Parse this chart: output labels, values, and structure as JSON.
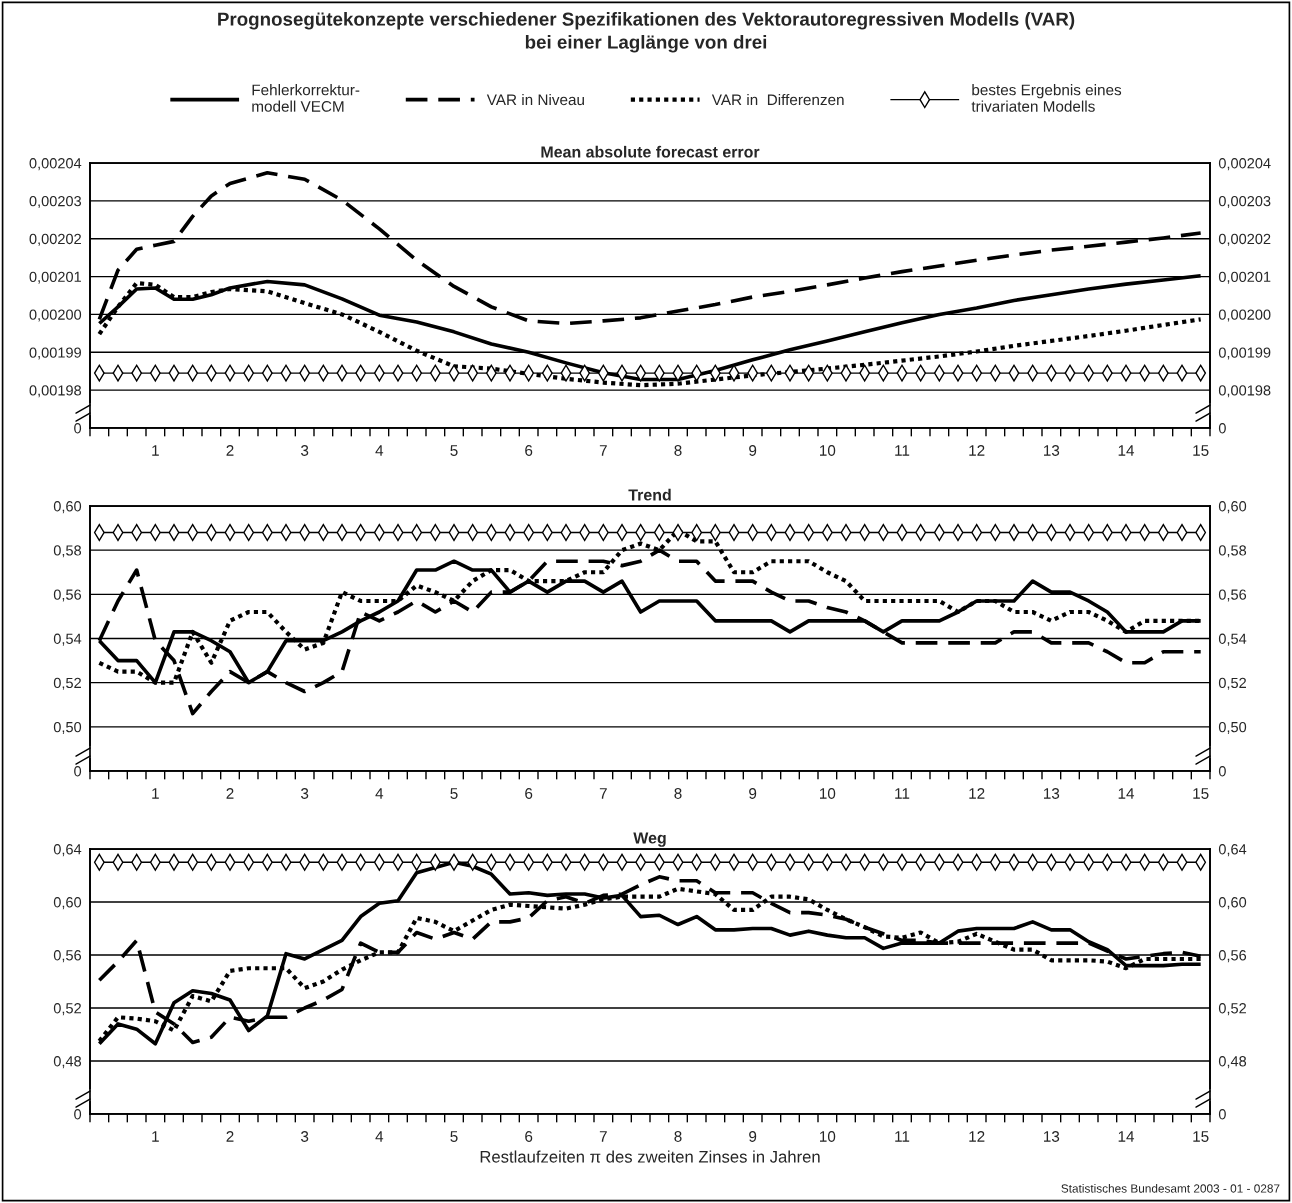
{
  "chart_data": [
    {
      "type": "line",
      "title": "Prognosegütekonzepte verschiedener Spezifikationen des Vektorautoregressiven Modells (VAR)\nbei einer Laglänge von drei",
      "subtitle": "Mean absolute forecast error",
      "x": [
        0.25,
        0.5,
        0.75,
        1,
        1.25,
        1.5,
        1.75,
        2,
        2.25,
        2.5,
        2.75,
        3,
        3.25,
        3.5,
        3.75,
        4,
        4.25,
        4.5,
        4.75,
        5,
        5.25,
        5.5,
        5.75,
        6,
        6.25,
        6.5,
        6.75,
        7,
        7.25,
        7.5,
        7.75,
        8,
        8.25,
        8.5,
        8.75,
        9,
        9.25,
        9.5,
        9.75,
        10,
        10.25,
        10.5,
        10.75,
        11,
        11.25,
        11.5,
        11.75,
        12,
        12.25,
        12.5,
        12.75,
        13,
        13.25,
        13.5,
        13.75,
        14,
        14.25,
        14.5,
        14.75,
        15
      ],
      "xlim": [
        0.125,
        15.125
      ],
      "xticks": [
        {
          "value": 0.125,
          "label": null
        },
        {
          "value": 0.375,
          "label": null
        },
        {
          "value": 0.625,
          "label": null
        },
        {
          "value": 0.875,
          "label": null
        },
        {
          "value": 1,
          "label": "1"
        },
        {
          "value": 1.125,
          "label": null
        },
        {
          "value": 1.375,
          "label": null
        },
        {
          "value": 1.625,
          "label": null
        },
        {
          "value": 1.875,
          "label": null
        },
        {
          "value": 2,
          "label": "2"
        },
        {
          "value": 2.125,
          "label": null
        },
        {
          "value": 2.375,
          "label": null
        },
        {
          "value": 2.625,
          "label": null
        },
        {
          "value": 2.875,
          "label": null
        },
        {
          "value": 3,
          "label": "3"
        },
        {
          "value": 3.125,
          "label": null
        },
        {
          "value": 3.375,
          "label": null
        },
        {
          "value": 3.625,
          "label": null
        },
        {
          "value": 3.875,
          "label": null
        },
        {
          "value": 4,
          "label": "4"
        },
        {
          "value": 4.125,
          "label": null
        },
        {
          "value": 4.375,
          "label": null
        },
        {
          "value": 4.625,
          "label": null
        },
        {
          "value": 4.875,
          "label": null
        },
        {
          "value": 5,
          "label": "5"
        },
        {
          "value": 5.125,
          "label": null
        },
        {
          "value": 5.375,
          "label": null
        },
        {
          "value": 5.625,
          "label": null
        },
        {
          "value": 5.875,
          "label": null
        },
        {
          "value": 6,
          "label": "6"
        },
        {
          "value": 6.125,
          "label": null
        },
        {
          "value": 6.375,
          "label": null
        },
        {
          "value": 6.625,
          "label": null
        },
        {
          "value": 6.875,
          "label": null
        },
        {
          "value": 7,
          "label": "7"
        },
        {
          "value": 7.125,
          "label": null
        },
        {
          "value": 7.375,
          "label": null
        },
        {
          "value": 7.625,
          "label": null
        },
        {
          "value": 7.875,
          "label": null
        },
        {
          "value": 8,
          "label": "8"
        },
        {
          "value": 8.125,
          "label": null
        },
        {
          "value": 8.375,
          "label": null
        },
        {
          "value": 8.625,
          "label": null
        },
        {
          "value": 8.875,
          "label": null
        },
        {
          "value": 9,
          "label": "9"
        },
        {
          "value": 9.125,
          "label": null
        },
        {
          "value": 9.375,
          "label": null
        },
        {
          "value": 9.625,
          "label": null
        },
        {
          "value": 9.875,
          "label": null
        },
        {
          "value": 10,
          "label": "10"
        },
        {
          "value": 10.125,
          "label": null
        },
        {
          "value": 10.375,
          "label": null
        },
        {
          "value": 10.625,
          "label": null
        },
        {
          "value": 10.875,
          "label": null
        },
        {
          "value": 11,
          "label": "11"
        },
        {
          "value": 11.125,
          "label": null
        },
        {
          "value": 11.375,
          "label": null
        },
        {
          "value": 11.625,
          "label": null
        },
        {
          "value": 11.875,
          "label": null
        },
        {
          "value": 12,
          "label": "12"
        },
        {
          "value": 12.125,
          "label": null
        },
        {
          "value": 12.375,
          "label": null
        },
        {
          "value": 12.625,
          "label": null
        },
        {
          "value": 12.875,
          "label": null
        },
        {
          "value": 13,
          "label": "13"
        },
        {
          "value": 13.125,
          "label": null
        },
        {
          "value": 13.375,
          "label": null
        },
        {
          "value": 13.625,
          "label": null
        },
        {
          "value": 13.875,
          "label": null
        },
        {
          "value": 14,
          "label": "14"
        },
        {
          "value": 14.125,
          "label": null
        },
        {
          "value": 14.375,
          "label": null
        },
        {
          "value": 14.625,
          "label": null
        },
        {
          "value": 14.875,
          "label": null
        },
        {
          "value": 15,
          "label": "15"
        },
        {
          "value": 15.125,
          "label": null
        }
      ],
      "ylim": [
        0.00197,
        0.00204
      ],
      "yticks": [
        {
          "value": 0.00197,
          "label": "0"
        },
        {
          "value": 0.00198,
          "label": "0,00198"
        },
        {
          "value": 0.00199,
          "label": "0,00199"
        },
        {
          "value": 0.002,
          "label": "0,00200"
        },
        {
          "value": 0.00201,
          "label": "0,00201"
        },
        {
          "value": 0.00202,
          "label": "0,00202"
        },
        {
          "value": 0.00203,
          "label": "0,00203"
        },
        {
          "value": 0.00204,
          "label": "0,00204"
        }
      ],
      "y2lim": [
        0.00197,
        0.00204
      ],
      "y2ticks": [
        {
          "value": 0.00197,
          "label": "0"
        },
        {
          "value": 0.00198,
          "label": "0,00198"
        },
        {
          "value": 0.00199,
          "label": "0,00199"
        },
        {
          "value": 0.002,
          "label": "0,00200"
        },
        {
          "value": 0.00201,
          "label": "0,00201"
        },
        {
          "value": 0.00202,
          "label": "0,00202"
        },
        {
          "value": 0.00203,
          "label": "0,00203"
        },
        {
          "value": 0.00204,
          "label": "0,00204"
        }
      ],
      "grid": "y",
      "legend": "top",
      "series": [
        {
          "name": "Fehlerkorrektur-\nmodell VECM",
          "color": "#000000",
          "line_style": "solid",
          "x": [
            0.25,
            0.5,
            0.75,
            1,
            1.25,
            1.5,
            1.75,
            2,
            2.5,
            3,
            3.5,
            4,
            4.5,
            5,
            5.5,
            6,
            6.5,
            7,
            7.5,
            8,
            8.5,
            9,
            9.5,
            10,
            10.5,
            11,
            11.5,
            12,
            12.5,
            13,
            13.5,
            14,
            14.5,
            15
          ],
          "values": [
            0.0019976,
            0.002002,
            0.0020067,
            0.002007,
            0.002004,
            0.002004,
            0.0020052,
            0.002007,
            0.0020087,
            0.0020078,
            0.0020041,
            0.0019998,
            0.001998,
            0.0019954,
            0.0019922,
            0.00199,
            0.0019872,
            0.0019846,
            0.0019828,
            0.0019828,
            0.0019852,
            0.001988,
            0.0019907,
            0.001993,
            0.0019954,
            0.0019978,
            0.002,
            0.0020017,
            0.0020037,
            0.0020052,
            0.0020067,
            0.002008,
            0.0020091,
            0.0020102
          ]
        },
        {
          "name": "VAR in Niveau",
          "color": "#000000",
          "line_style": "dashed",
          "x": [
            0.25,
            0.5,
            0.75,
            1,
            1.25,
            1.5,
            1.75,
            2,
            2.5,
            3,
            3.5,
            4,
            4.5,
            5,
            5.5,
            6,
            6.5,
            7,
            7.5,
            8,
            8.5,
            9,
            9.5,
            10,
            10.5,
            11,
            11.5,
            12,
            12.5,
            13,
            13.5,
            14,
            14.5,
            15
          ],
          "values": [
            0.0019987,
            0.0020117,
            0.0020172,
            0.0020183,
            0.0020193,
            0.0020259,
            0.0020313,
            0.0020346,
            0.0020374,
            0.0020357,
            0.0020302,
            0.0020226,
            0.0020143,
            0.0020074,
            0.002002,
            0.0019983,
            0.0019976,
            0.0019983,
            0.0019991,
            0.0020009,
            0.0020026,
            0.0020046,
            0.0020061,
            0.0020078,
            0.0020096,
            0.0020113,
            0.0020128,
            0.0020143,
            0.0020157,
            0.002017,
            0.002018,
            0.0020191,
            0.0020202,
            0.0020215
          ]
        },
        {
          "name": "VAR in  Differenzen",
          "color": "#000000",
          "line_style": "dotted",
          "x": [
            0.25,
            0.5,
            0.75,
            1,
            1.25,
            1.5,
            1.75,
            2,
            2.5,
            3,
            3.5,
            4,
            4.5,
            5,
            5.5,
            6,
            6.5,
            7,
            7.5,
            8,
            8.5,
            9,
            9.5,
            10,
            10.5,
            11,
            11.5,
            12,
            12.5,
            13,
            13.5,
            14,
            14.5,
            15
          ],
          "values": [
            0.0019948,
            0.002002,
            0.0020083,
            0.0020078,
            0.0020046,
            0.0020046,
            0.0020059,
            0.0020067,
            0.0020061,
            0.002003,
            0.002,
            0.0019954,
            0.0019904,
            0.0019863,
            0.0019857,
            0.0019843,
            0.001983,
            0.001982,
            0.0019813,
            0.0019817,
            0.0019828,
            0.0019839,
            0.0019848,
            0.0019857,
            0.0019867,
            0.0019878,
            0.0019889,
            0.0019902,
            0.0019917,
            0.001993,
            0.0019943,
            0.0019957,
            0.0019972,
            0.0019987
          ]
        },
        {
          "name": "bestes Ergebnis eines\ntrivariaten Modells",
          "color": "#000000",
          "line_style": "solid",
          "marker": "diamond",
          "values": [
            0.0019845,
            0.0019845,
            0.0019845,
            0.0019845,
            0.0019845,
            0.0019845,
            0.0019845,
            0.0019845,
            0.0019845,
            0.0019845,
            0.0019845,
            0.0019845,
            0.0019845,
            0.0019845,
            0.0019845,
            0.0019845,
            0.0019845,
            0.0019845,
            0.0019845,
            0.0019845,
            0.0019845,
            0.0019845,
            0.0019845,
            0.0019845,
            0.0019845,
            0.0019845,
            0.0019845,
            0.0019845,
            0.0019845,
            0.0019845,
            0.0019845,
            0.0019845,
            0.0019845,
            0.0019845,
            0.0019845,
            0.0019845,
            0.0019845,
            0.0019845,
            0.0019845,
            0.0019845,
            0.0019845,
            0.0019845,
            0.0019845,
            0.0019845,
            0.0019845,
            0.0019845,
            0.0019845,
            0.0019845,
            0.0019845,
            0.0019845,
            0.0019845,
            0.0019845,
            0.0019845,
            0.0019845,
            0.0019845,
            0.0019845,
            0.0019845,
            0.0019845,
            0.0019845,
            0.0019845
          ]
        }
      ]
    },
    {
      "type": "line",
      "title": "Trend",
      "x": [
        0.25,
        0.5,
        0.75,
        1,
        1.25,
        1.5,
        1.75,
        2,
        2.25,
        2.5,
        2.75,
        3,
        3.25,
        3.5,
        3.75,
        4,
        4.25,
        4.5,
        4.75,
        5,
        5.25,
        5.5,
        5.75,
        6,
        6.25,
        6.5,
        6.75,
        7,
        7.25,
        7.5,
        7.75,
        8,
        8.25,
        8.5,
        8.75,
        9,
        9.25,
        9.5,
        9.75,
        10,
        10.25,
        10.5,
        10.75,
        11,
        11.25,
        11.5,
        11.75,
        12,
        12.25,
        12.5,
        12.75,
        13,
        13.25,
        13.5,
        13.75,
        14,
        14.25,
        14.5,
        14.75,
        15
      ],
      "xlim": [
        0.125,
        15.125
      ],
      "xticks": [
        {
          "value": 0.125,
          "label": null
        },
        {
          "value": 0.375,
          "label": null
        },
        {
          "value": 0.625,
          "label": null
        },
        {
          "value": 0.875,
          "label": null
        },
        {
          "value": 1,
          "label": "1"
        },
        {
          "value": 1.125,
          "label": null
        },
        {
          "value": 1.375,
          "label": null
        },
        {
          "value": 1.625,
          "label": null
        },
        {
          "value": 1.875,
          "label": null
        },
        {
          "value": 2,
          "label": "2"
        },
        {
          "value": 2.125,
          "label": null
        },
        {
          "value": 2.375,
          "label": null
        },
        {
          "value": 2.625,
          "label": null
        },
        {
          "value": 2.875,
          "label": null
        },
        {
          "value": 3,
          "label": "3"
        },
        {
          "value": 3.125,
          "label": null
        },
        {
          "value": 3.375,
          "label": null
        },
        {
          "value": 3.625,
          "label": null
        },
        {
          "value": 3.875,
          "label": null
        },
        {
          "value": 4,
          "label": "4"
        },
        {
          "value": 4.125,
          "label": null
        },
        {
          "value": 4.375,
          "label": null
        },
        {
          "value": 4.625,
          "label": null
        },
        {
          "value": 4.875,
          "label": null
        },
        {
          "value": 5,
          "label": "5"
        },
        {
          "value": 5.125,
          "label": null
        },
        {
          "value": 5.375,
          "label": null
        },
        {
          "value": 5.625,
          "label": null
        },
        {
          "value": 5.875,
          "label": null
        },
        {
          "value": 6,
          "label": "6"
        },
        {
          "value": 6.125,
          "label": null
        },
        {
          "value": 6.375,
          "label": null
        },
        {
          "value": 6.625,
          "label": null
        },
        {
          "value": 6.875,
          "label": null
        },
        {
          "value": 7,
          "label": "7"
        },
        {
          "value": 7.125,
          "label": null
        },
        {
          "value": 7.375,
          "label": null
        },
        {
          "value": 7.625,
          "label": null
        },
        {
          "value": 7.875,
          "label": null
        },
        {
          "value": 8,
          "label": "8"
        },
        {
          "value": 8.125,
          "label": null
        },
        {
          "value": 8.375,
          "label": null
        },
        {
          "value": 8.625,
          "label": null
        },
        {
          "value": 8.875,
          "label": null
        },
        {
          "value": 9,
          "label": "9"
        },
        {
          "value": 9.125,
          "label": null
        },
        {
          "value": 9.375,
          "label": null
        },
        {
          "value": 9.625,
          "label": null
        },
        {
          "value": 9.875,
          "label": null
        },
        {
          "value": 10,
          "label": "10"
        },
        {
          "value": 10.125,
          "label": null
        },
        {
          "value": 10.375,
          "label": null
        },
        {
          "value": 10.625,
          "label": null
        },
        {
          "value": 10.875,
          "label": null
        },
        {
          "value": 11,
          "label": "11"
        },
        {
          "value": 11.125,
          "label": null
        },
        {
          "value": 11.375,
          "label": null
        },
        {
          "value": 11.625,
          "label": null
        },
        {
          "value": 11.875,
          "label": null
        },
        {
          "value": 12,
          "label": "12"
        },
        {
          "value": 12.125,
          "label": null
        },
        {
          "value": 12.375,
          "label": null
        },
        {
          "value": 12.625,
          "label": null
        },
        {
          "value": 12.875,
          "label": null
        },
        {
          "value": 13,
          "label": "13"
        },
        {
          "value": 13.125,
          "label": null
        },
        {
          "value": 13.375,
          "label": null
        },
        {
          "value": 13.625,
          "label": null
        },
        {
          "value": 13.875,
          "label": null
        },
        {
          "value": 14,
          "label": "14"
        },
        {
          "value": 14.125,
          "label": null
        },
        {
          "value": 14.375,
          "label": null
        },
        {
          "value": 14.625,
          "label": null
        },
        {
          "value": 14.875,
          "label": null
        },
        {
          "value": 15,
          "label": "15"
        },
        {
          "value": 15.125,
          "label": null
        }
      ],
      "ylim": [
        0.48,
        0.6
      ],
      "yticks": [
        {
          "value": 0.48,
          "label": "0"
        },
        {
          "value": 0.5,
          "label": "0,50"
        },
        {
          "value": 0.52,
          "label": "0,52"
        },
        {
          "value": 0.54,
          "label": "0,54"
        },
        {
          "value": 0.56,
          "label": "0,56"
        },
        {
          "value": 0.58,
          "label": "0,58"
        },
        {
          "value": 0.6,
          "label": "0,60"
        }
      ],
      "y2lim": [
        0.48,
        0.6
      ],
      "y2ticks": [
        {
          "value": 0.48,
          "label": "0"
        },
        {
          "value": 0.5,
          "label": "0,50"
        },
        {
          "value": 0.52,
          "label": "0,52"
        },
        {
          "value": 0.54,
          "label": "0,54"
        },
        {
          "value": 0.56,
          "label": "0,56"
        },
        {
          "value": 0.58,
          "label": "0,58"
        },
        {
          "value": 0.6,
          "label": "0,60"
        }
      ],
      "grid": "y",
      "series": [
        {
          "color": "#000000",
          "line_style": "solid",
          "values": [
            0.539,
            0.53,
            0.53,
            0.52,
            0.543,
            0.543,
            0.539,
            0.534,
            0.52,
            0.525,
            0.539,
            0.539,
            0.539,
            0.543,
            0.548,
            0.552,
            0.557,
            0.571,
            0.571,
            0.575,
            0.571,
            0.571,
            0.561,
            0.566,
            0.561,
            0.566,
            0.566,
            0.561,
            0.566,
            0.552,
            0.557,
            0.557,
            0.557,
            0.548,
            0.548,
            0.548,
            0.548,
            0.543,
            0.548,
            0.548,
            0.548,
            0.548,
            0.543,
            0.548,
            0.548,
            0.548,
            0.552,
            0.557,
            0.557,
            0.557,
            0.566,
            0.561,
            0.561,
            0.557,
            0.552,
            0.543,
            0.543,
            0.543,
            0.548,
            0.548
          ]
        },
        {
          "color": "#000000",
          "line_style": "dashed",
          "values": [
            0.539,
            0.557,
            0.571,
            0.539,
            0.53,
            0.506,
            0.516,
            0.525,
            0.52,
            0.525,
            0.52,
            0.516,
            0.52,
            0.525,
            0.552,
            0.548,
            0.552,
            0.557,
            0.552,
            0.557,
            0.552,
            0.561,
            0.561,
            0.566,
            0.575,
            0.575,
            0.575,
            0.575,
            0.573,
            0.575,
            0.58,
            0.575,
            0.575,
            0.566,
            0.566,
            0.566,
            0.561,
            0.557,
            0.557,
            0.554,
            0.552,
            0.548,
            0.543,
            0.538,
            0.538,
            0.538,
            0.538,
            0.538,
            0.538,
            0.543,
            0.543,
            0.538,
            0.538,
            0.538,
            0.534,
            0.529,
            0.529,
            0.534,
            0.534,
            0.534
          ]
        },
        {
          "color": "#000000",
          "line_style": "dotted",
          "values": [
            0.529,
            0.525,
            0.525,
            0.52,
            0.52,
            0.543,
            0.529,
            0.548,
            0.552,
            0.552,
            0.543,
            0.535,
            0.538,
            0.561,
            0.557,
            0.557,
            0.557,
            0.564,
            0.561,
            0.557,
            0.566,
            0.571,
            0.571,
            0.566,
            0.566,
            0.566,
            0.57,
            0.57,
            0.58,
            0.583,
            0.58,
            0.589,
            0.584,
            0.584,
            0.57,
            0.57,
            0.575,
            0.575,
            0.575,
            0.57,
            0.566,
            0.557,
            0.557,
            0.557,
            0.557,
            0.557,
            0.552,
            0.557,
            0.557,
            0.552,
            0.552,
            0.548,
            0.552,
            0.552,
            0.548,
            0.543,
            0.548,
            0.548,
            0.548,
            0.548
          ]
        },
        {
          "color": "#000000",
          "line_style": "solid",
          "marker": "diamond",
          "values": [
            0.588,
            0.588,
            0.588,
            0.588,
            0.588,
            0.588,
            0.588,
            0.588,
            0.588,
            0.588,
            0.588,
            0.588,
            0.588,
            0.588,
            0.588,
            0.588,
            0.588,
            0.588,
            0.588,
            0.588,
            0.588,
            0.588,
            0.588,
            0.588,
            0.588,
            0.588,
            0.588,
            0.588,
            0.588,
            0.588,
            0.588,
            0.588,
            0.588,
            0.588,
            0.588,
            0.588,
            0.588,
            0.588,
            0.588,
            0.588,
            0.588,
            0.588,
            0.588,
            0.588,
            0.588,
            0.588,
            0.588,
            0.588,
            0.588,
            0.588,
            0.588,
            0.588,
            0.588,
            0.588,
            0.588,
            0.588,
            0.588,
            0.588,
            0.588,
            0.588
          ]
        }
      ]
    },
    {
      "type": "line",
      "title": "Weg",
      "xlabel": "Restlaufzeiten π des zweiten Zinses in Jahren",
      "annotations": [
        "Statistisches Bundesamt 2003 - 01 - 0287"
      ],
      "x": [
        0.25,
        0.5,
        0.75,
        1,
        1.25,
        1.5,
        1.75,
        2,
        2.25,
        2.5,
        2.75,
        3,
        3.25,
        3.5,
        3.75,
        4,
        4.25,
        4.5,
        4.75,
        5,
        5.25,
        5.5,
        5.75,
        6,
        6.25,
        6.5,
        6.75,
        7,
        7.25,
        7.5,
        7.75,
        8,
        8.25,
        8.5,
        8.75,
        9,
        9.25,
        9.5,
        9.75,
        10,
        10.25,
        10.5,
        10.75,
        11,
        11.25,
        11.5,
        11.75,
        12,
        12.25,
        12.5,
        12.75,
        13,
        13.25,
        13.5,
        13.75,
        14,
        14.25,
        14.5,
        14.75,
        15
      ],
      "xlim": [
        0.125,
        15.125
      ],
      "xticks": [
        {
          "value": 0.125,
          "label": null
        },
        {
          "value": 0.375,
          "label": null
        },
        {
          "value": 0.625,
          "label": null
        },
        {
          "value": 0.875,
          "label": null
        },
        {
          "value": 1,
          "label": "1"
        },
        {
          "value": 1.125,
          "label": null
        },
        {
          "value": 1.375,
          "label": null
        },
        {
          "value": 1.625,
          "label": null
        },
        {
          "value": 1.875,
          "label": null
        },
        {
          "value": 2,
          "label": "2"
        },
        {
          "value": 2.125,
          "label": null
        },
        {
          "value": 2.375,
          "label": null
        },
        {
          "value": 2.625,
          "label": null
        },
        {
          "value": 2.875,
          "label": null
        },
        {
          "value": 3,
          "label": "3"
        },
        {
          "value": 3.125,
          "label": null
        },
        {
          "value": 3.375,
          "label": null
        },
        {
          "value": 3.625,
          "label": null
        },
        {
          "value": 3.875,
          "label": null
        },
        {
          "value": 4,
          "label": "4"
        },
        {
          "value": 4.125,
          "label": null
        },
        {
          "value": 4.375,
          "label": null
        },
        {
          "value": 4.625,
          "label": null
        },
        {
          "value": 4.875,
          "label": null
        },
        {
          "value": 5,
          "label": "5"
        },
        {
          "value": 5.125,
          "label": null
        },
        {
          "value": 5.375,
          "label": null
        },
        {
          "value": 5.625,
          "label": null
        },
        {
          "value": 5.875,
          "label": null
        },
        {
          "value": 6,
          "label": "6"
        },
        {
          "value": 6.125,
          "label": null
        },
        {
          "value": 6.375,
          "label": null
        },
        {
          "value": 6.625,
          "label": null
        },
        {
          "value": 6.875,
          "label": null
        },
        {
          "value": 7,
          "label": "7"
        },
        {
          "value": 7.125,
          "label": null
        },
        {
          "value": 7.375,
          "label": null
        },
        {
          "value": 7.625,
          "label": null
        },
        {
          "value": 7.875,
          "label": null
        },
        {
          "value": 8,
          "label": "8"
        },
        {
          "value": 8.125,
          "label": null
        },
        {
          "value": 8.375,
          "label": null
        },
        {
          "value": 8.625,
          "label": null
        },
        {
          "value": 8.875,
          "label": null
        },
        {
          "value": 9,
          "label": "9"
        },
        {
          "value": 9.125,
          "label": null
        },
        {
          "value": 9.375,
          "label": null
        },
        {
          "value": 9.625,
          "label": null
        },
        {
          "value": 9.875,
          "label": null
        },
        {
          "value": 10,
          "label": "10"
        },
        {
          "value": 10.125,
          "label": null
        },
        {
          "value": 10.375,
          "label": null
        },
        {
          "value": 10.625,
          "label": null
        },
        {
          "value": 10.875,
          "label": null
        },
        {
          "value": 11,
          "label": "11"
        },
        {
          "value": 11.125,
          "label": null
        },
        {
          "value": 11.375,
          "label": null
        },
        {
          "value": 11.625,
          "label": null
        },
        {
          "value": 11.875,
          "label": null
        },
        {
          "value": 12,
          "label": "12"
        },
        {
          "value": 12.125,
          "label": null
        },
        {
          "value": 12.375,
          "label": null
        },
        {
          "value": 12.625,
          "label": null
        },
        {
          "value": 12.875,
          "label": null
        },
        {
          "value": 13,
          "label": "13"
        },
        {
          "value": 13.125,
          "label": null
        },
        {
          "value": 13.375,
          "label": null
        },
        {
          "value": 13.625,
          "label": null
        },
        {
          "value": 13.875,
          "label": null
        },
        {
          "value": 14,
          "label": "14"
        },
        {
          "value": 14.125,
          "label": null
        },
        {
          "value": 14.375,
          "label": null
        },
        {
          "value": 14.625,
          "label": null
        },
        {
          "value": 14.875,
          "label": null
        },
        {
          "value": 15,
          "label": "15"
        },
        {
          "value": 15.125,
          "label": null
        }
      ],
      "ylim": [
        0.44,
        0.64
      ],
      "yticks": [
        {
          "value": 0.44,
          "label": "0"
        },
        {
          "value": 0.48,
          "label": "0,48"
        },
        {
          "value": 0.52,
          "label": "0,52"
        },
        {
          "value": 0.56,
          "label": "0,56"
        },
        {
          "value": 0.6,
          "label": "0,60"
        },
        {
          "value": 0.64,
          "label": "0,64"
        }
      ],
      "y2lim": [
        0.44,
        0.64
      ],
      "y2ticks": [
        {
          "value": 0.44,
          "label": "0"
        },
        {
          "value": 0.48,
          "label": "0,48"
        },
        {
          "value": 0.52,
          "label": "0,52"
        },
        {
          "value": 0.56,
          "label": "0,56"
        },
        {
          "value": 0.6,
          "label": "0,60"
        },
        {
          "value": 0.64,
          "label": "0,64"
        }
      ],
      "grid": "y",
      "series": [
        {
          "color": "#000000",
          "line_style": "solid",
          "values": [
            0.493,
            0.508,
            0.504,
            0.493,
            0.524,
            0.533,
            0.531,
            0.526,
            0.503,
            0.514,
            0.561,
            0.557,
            0.564,
            0.571,
            0.589,
            0.599,
            0.601,
            0.622,
            0.626,
            0.63,
            0.627,
            0.621,
            0.606,
            0.607,
            0.605,
            0.606,
            0.606,
            0.603,
            0.605,
            0.589,
            0.59,
            0.583,
            0.589,
            0.579,
            0.579,
            0.58,
            0.58,
            0.575,
            0.578,
            0.575,
            0.573,
            0.573,
            0.565,
            0.569,
            0.569,
            0.569,
            0.578,
            0.58,
            0.58,
            0.58,
            0.585,
            0.579,
            0.579,
            0.57,
            0.564,
            0.552,
            0.552,
            0.552,
            0.553,
            0.553
          ]
        },
        {
          "color": "#000000",
          "line_style": "dashed",
          "values": [
            0.541,
            0.555,
            0.571,
            0.517,
            0.508,
            0.494,
            0.498,
            0.513,
            0.51,
            0.513,
            0.513,
            0.52,
            0.526,
            0.534,
            0.569,
            0.562,
            0.562,
            0.577,
            0.572,
            0.577,
            0.572,
            0.585,
            0.585,
            0.588,
            0.601,
            0.604,
            0.599,
            0.605,
            0.606,
            0.613,
            0.619,
            0.616,
            0.616,
            0.607,
            0.607,
            0.607,
            0.599,
            0.592,
            0.592,
            0.59,
            0.587,
            0.581,
            0.576,
            0.571,
            0.571,
            0.569,
            0.569,
            0.569,
            0.569,
            0.569,
            0.569,
            0.569,
            0.569,
            0.569,
            0.563,
            0.557,
            0.559,
            0.561,
            0.562,
            0.559
          ]
        },
        {
          "color": "#000000",
          "line_style": "dotted",
          "values": [
            0.495,
            0.513,
            0.512,
            0.51,
            0.503,
            0.529,
            0.525,
            0.548,
            0.55,
            0.55,
            0.55,
            0.535,
            0.54,
            0.549,
            0.556,
            0.562,
            0.562,
            0.588,
            0.585,
            0.578,
            0.586,
            0.594,
            0.598,
            0.597,
            0.596,
            0.595,
            0.598,
            0.602,
            0.604,
            0.604,
            0.604,
            0.61,
            0.608,
            0.606,
            0.594,
            0.594,
            0.604,
            0.604,
            0.602,
            0.594,
            0.587,
            0.581,
            0.574,
            0.573,
            0.577,
            0.569,
            0.57,
            0.576,
            0.57,
            0.564,
            0.564,
            0.556,
            0.556,
            0.556,
            0.555,
            0.55,
            0.557,
            0.557,
            0.557,
            0.557
          ]
        },
        {
          "color": "#000000",
          "line_style": "solid",
          "marker": "diamond",
          "values": [
            0.63,
            0.63,
            0.63,
            0.63,
            0.63,
            0.63,
            0.63,
            0.63,
            0.63,
            0.63,
            0.63,
            0.63,
            0.63,
            0.63,
            0.63,
            0.63,
            0.63,
            0.63,
            0.63,
            0.63,
            0.63,
            0.63,
            0.63,
            0.63,
            0.63,
            0.63,
            0.63,
            0.63,
            0.63,
            0.63,
            0.63,
            0.63,
            0.63,
            0.63,
            0.63,
            0.63,
            0.63,
            0.63,
            0.63,
            0.63,
            0.63,
            0.63,
            0.63,
            0.63,
            0.63,
            0.63,
            0.63,
            0.63,
            0.63,
            0.63,
            0.63,
            0.63,
            0.63,
            0.63,
            0.63,
            0.63,
            0.63,
            0.63,
            0.63,
            0.63
          ]
        }
      ]
    }
  ]
}
